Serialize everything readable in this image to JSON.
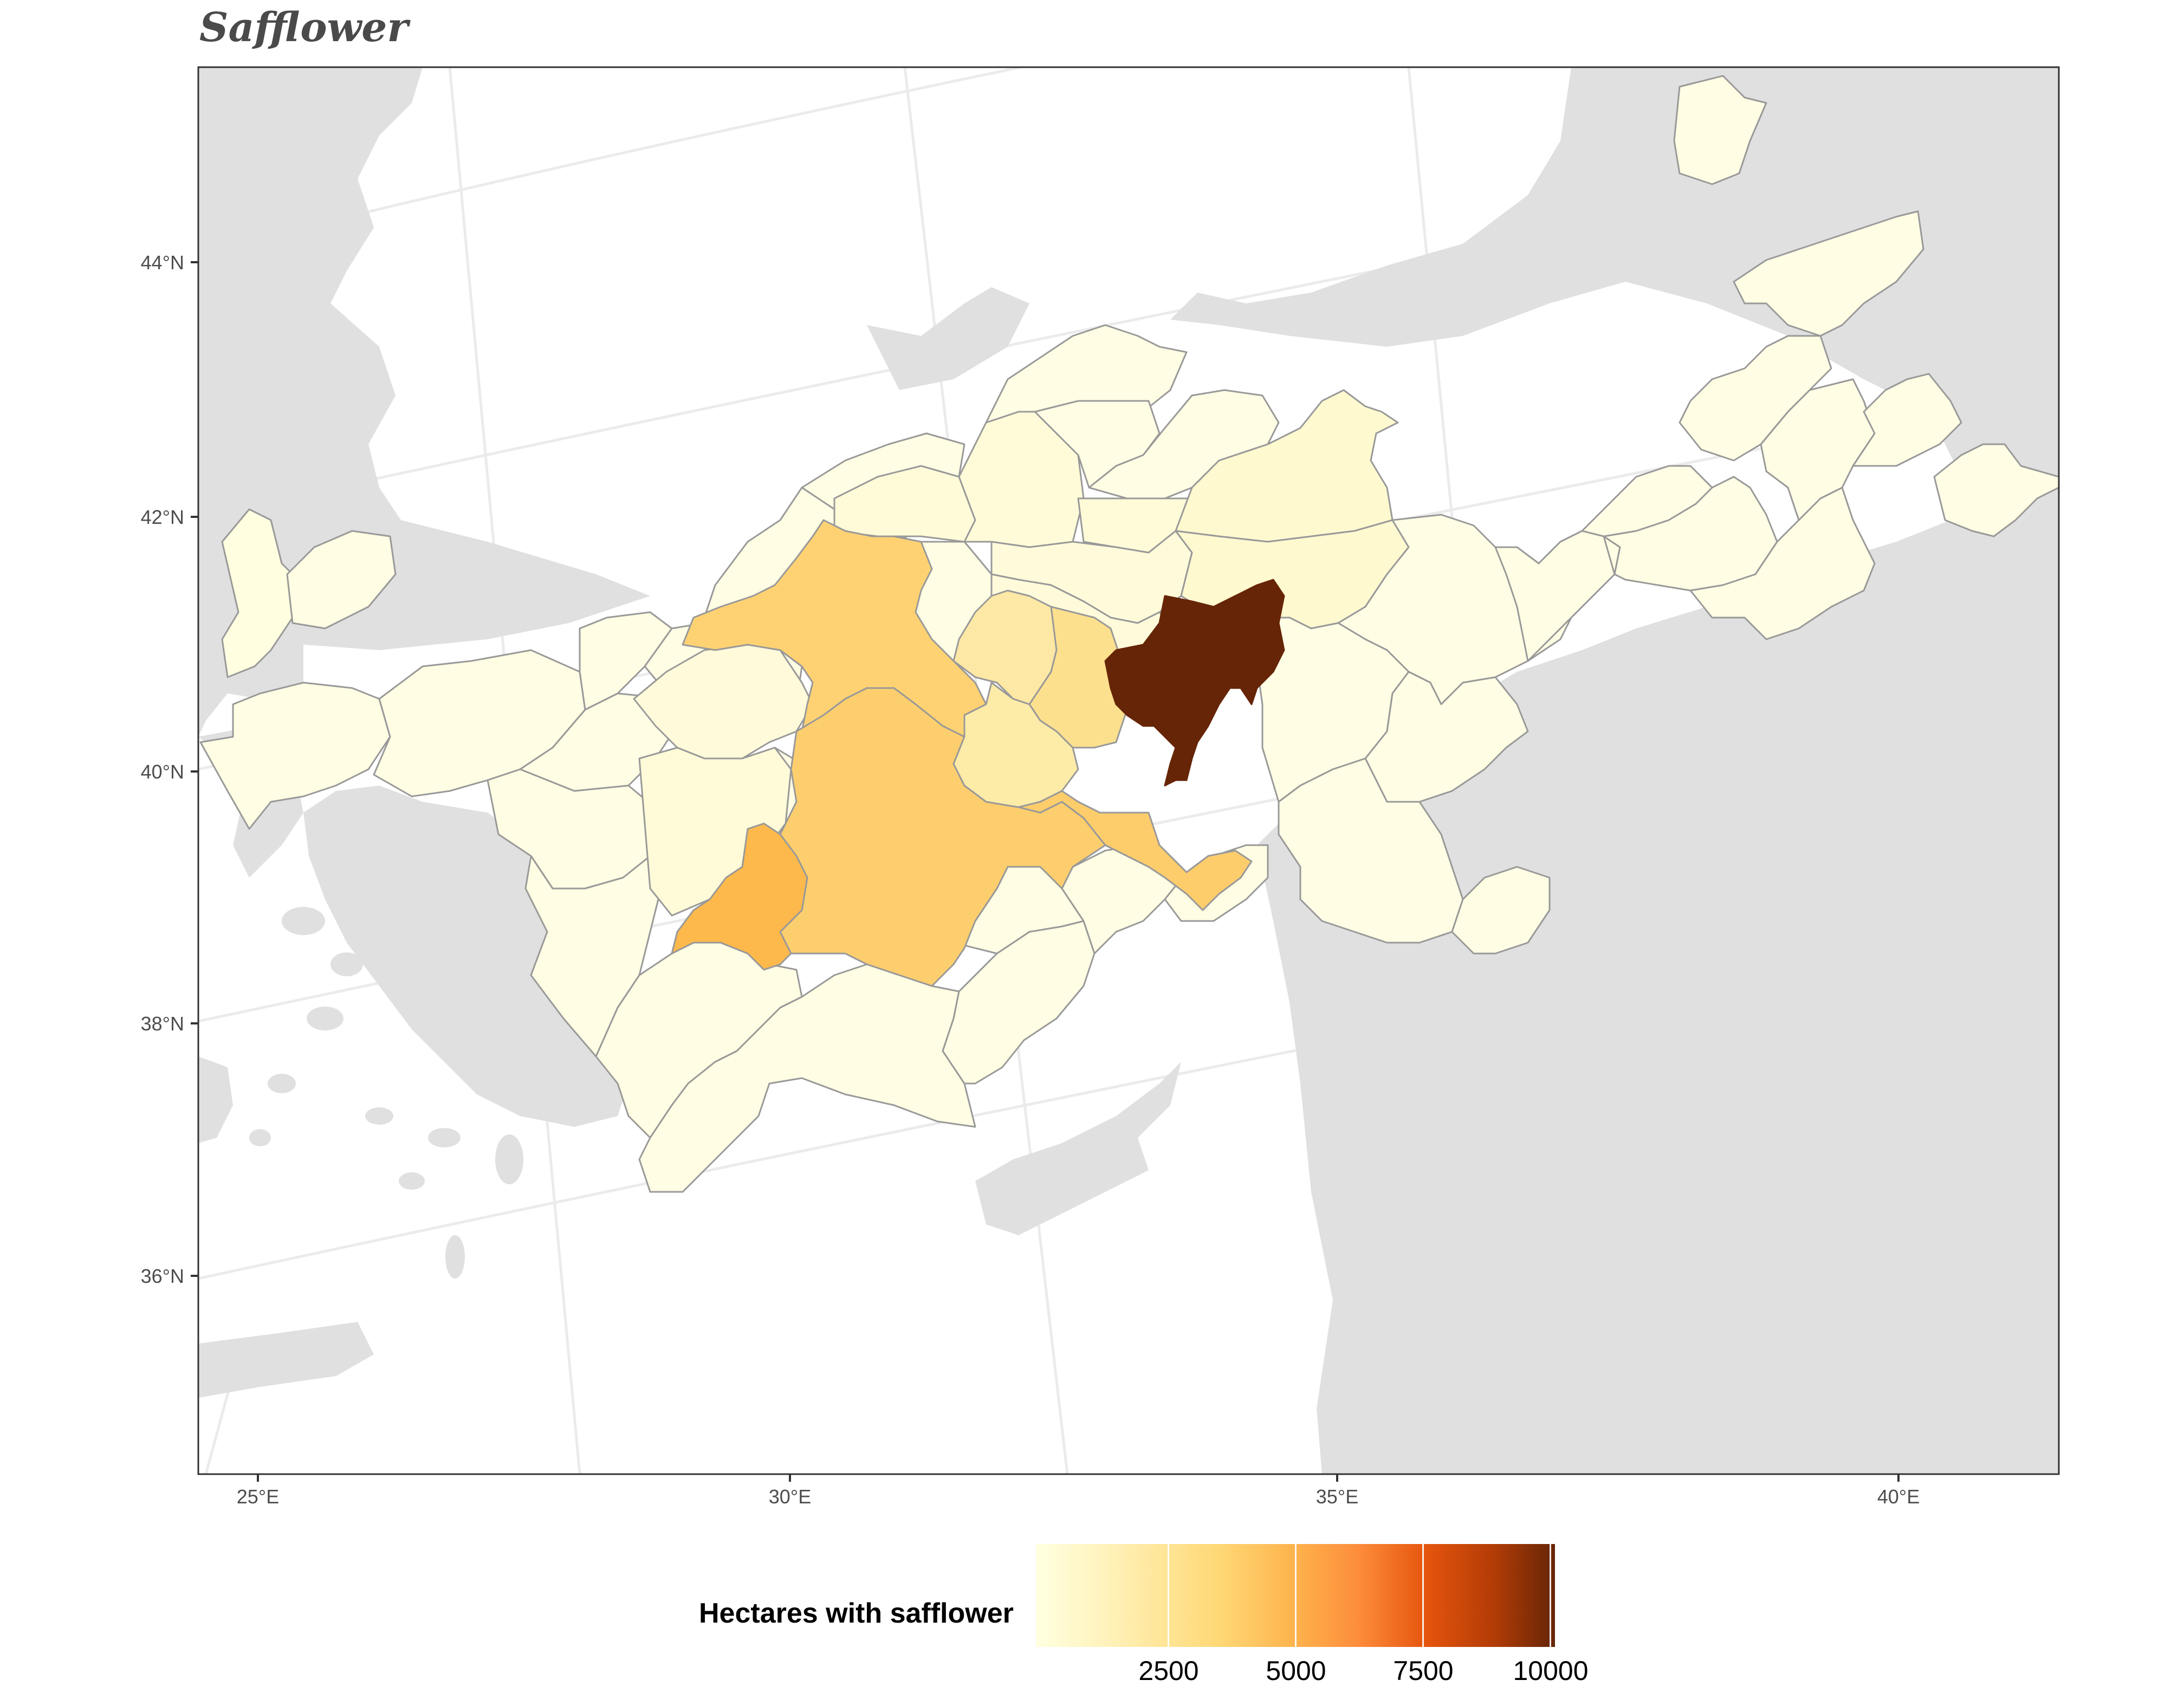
{
  "title": "Safflower",
  "axes": {
    "lat_labels": [
      "44°N",
      "42°N",
      "40°N",
      "38°N",
      "36°N"
    ],
    "lon_labels": [
      "25°E",
      "30°E",
      "35°E",
      "40°E"
    ]
  },
  "legend": {
    "title": "Hectares with safflower",
    "tick_labels": [
      "2500",
      "5000",
      "7500",
      "10000"
    ],
    "colors": [
      "#ffffe0",
      "#fed976",
      "#feb24c",
      "#fd8d3c",
      "#e6550d",
      "#662506"
    ]
  },
  "colors": {
    "land": "#e0e0e0",
    "sea": "#ffffff",
    "graticule": "#ebebeb",
    "province_border": "#999999",
    "panel_border": "#333333"
  }
}
